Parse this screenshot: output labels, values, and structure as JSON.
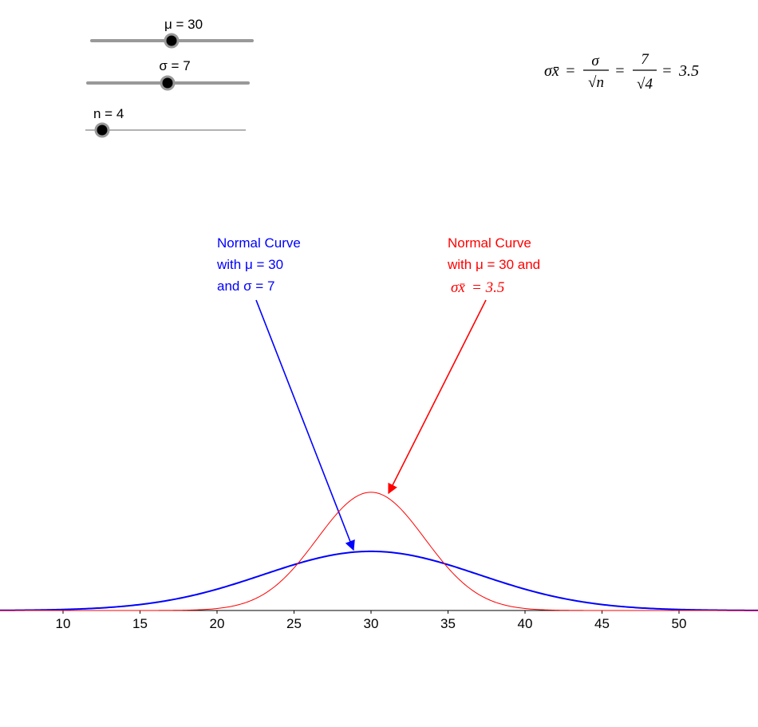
{
  "colors": {
    "blue": "#0000ff",
    "red": "#ff0000",
    "axis": "#000000",
    "slider_track": "#999999",
    "slider_knob": "#000000"
  },
  "sliders": [
    {
      "id": "mu",
      "label": "μ = 30",
      "value": 30,
      "min": 0,
      "max": 60,
      "fraction": 0.5
    },
    {
      "id": "sigma",
      "label": "σ = 7",
      "value": 7,
      "min": 0,
      "max": 14,
      "fraction": 0.5
    },
    {
      "id": "n",
      "label": "n = 4",
      "value": 4,
      "min": 1,
      "max": 50,
      "fraction": 0.1
    }
  ],
  "formula": {
    "lhs": "σx̄",
    "eq1": "=",
    "frac1_num": "σ",
    "frac1_den": "√n",
    "eq2": "=",
    "frac2_num": "7",
    "frac2_den": "√4",
    "eq3": "=",
    "result": "3.5"
  },
  "annotations": {
    "blue": {
      "lines": [
        "Normal Curve",
        "with μ = 30",
        "and σ = 7"
      ],
      "icon": "arrow-icon"
    },
    "red": {
      "lines": [
        "Normal Curve",
        "with μ = 30 and"
      ],
      "formula_lhs": "σx̄",
      "formula_rhs": "= 3.5",
      "icon": "arrow-icon"
    }
  },
  "chart_data": {
    "type": "line",
    "x_ticks": [
      10,
      15,
      20,
      25,
      30,
      35,
      40,
      45,
      50
    ],
    "xlim": [
      5,
      54.5
    ],
    "grid": false,
    "series": [
      {
        "color": "#0000ff",
        "mean": 30,
        "sd": 7,
        "peak": 0.057
      },
      {
        "color": "#ff0000",
        "mean": 30,
        "sd": 3.5,
        "peak": 0.114
      }
    ]
  }
}
